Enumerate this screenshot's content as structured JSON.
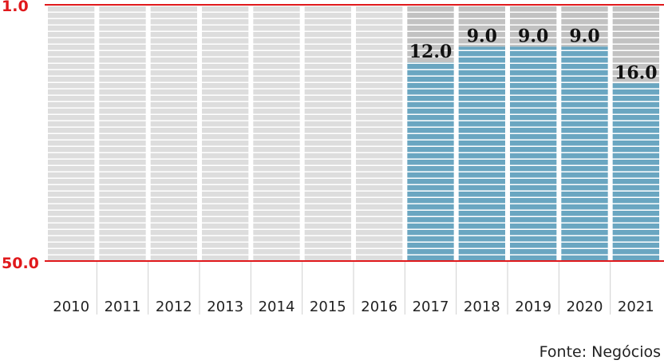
{
  "chart_data": {
    "type": "bar",
    "categories": [
      "2010",
      "2011",
      "2012",
      "2013",
      "2014",
      "2015",
      "2016",
      "2017",
      "2018",
      "2019",
      "2020",
      "2021"
    ],
    "values": [
      null,
      null,
      null,
      null,
      null,
      null,
      null,
      12.0,
      9.0,
      9.0,
      9.0,
      16.0
    ],
    "data_labels": [
      "",
      "",
      "",
      "",
      "",
      "",
      "",
      "12.0",
      "9.0",
      "9.0",
      "9.0",
      "16.0"
    ],
    "y_top_label": "1.0",
    "y_bottom_label": "50.0",
    "ylim": [
      1.0,
      50.0
    ],
    "y_inverted": true,
    "grid": false,
    "colors": {
      "bar": "#6aa6c1",
      "empty_column": "#dddddd",
      "remainder": "#c2c2c2",
      "stripe": "#ffffff",
      "axis_line": "#e0191c",
      "axis_label": "#e0191c",
      "divider": "#cfcfcf",
      "label_text": "#111111"
    }
  },
  "source": "Fonte: Negócios"
}
